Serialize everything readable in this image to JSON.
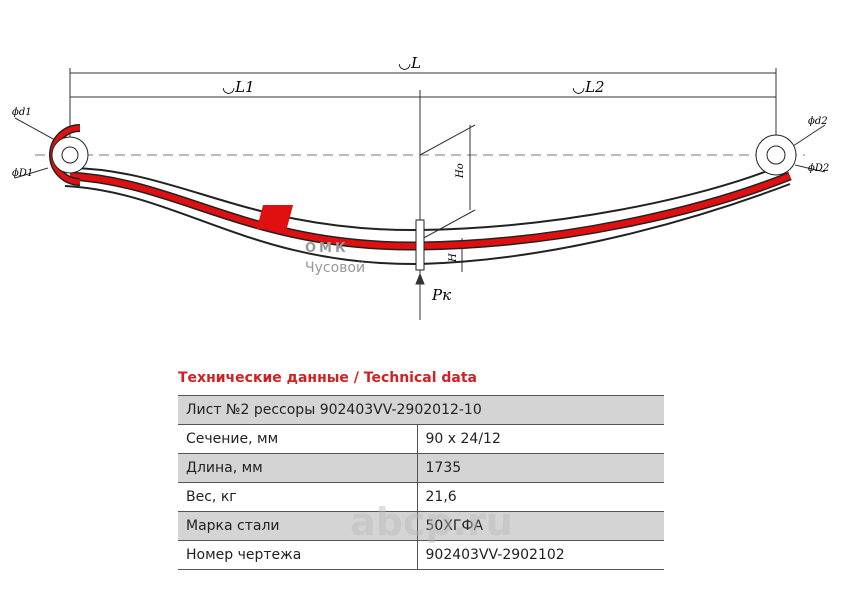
{
  "drawing": {
    "dim_L": "◡L",
    "dim_L1": "◡L1",
    "dim_L2": "◡L2",
    "d1": "ϕd1",
    "D1": "ϕD1",
    "d2": "ϕd2",
    "D2": "ϕD2",
    "Ho": "Ho",
    "H": "H",
    "Pk": "Pк"
  },
  "logo": {
    "brand": "ОМК",
    "city": "Чусовой"
  },
  "watermark": "abcp.ru",
  "table": {
    "title": "Технические данные / Technical data",
    "rows": [
      [
        "Лист №2 рессоры 902403VV-2902012-10"
      ],
      [
        "Сечение, мм",
        "90 х 24/12"
      ],
      [
        "Длина, мм",
        "1735"
      ],
      [
        "Вес, кг",
        "21,6"
      ],
      [
        "Марка стали",
        "50ХГФА"
      ],
      [
        "Номер чертежа",
        "902403VV-2902102"
      ]
    ]
  }
}
